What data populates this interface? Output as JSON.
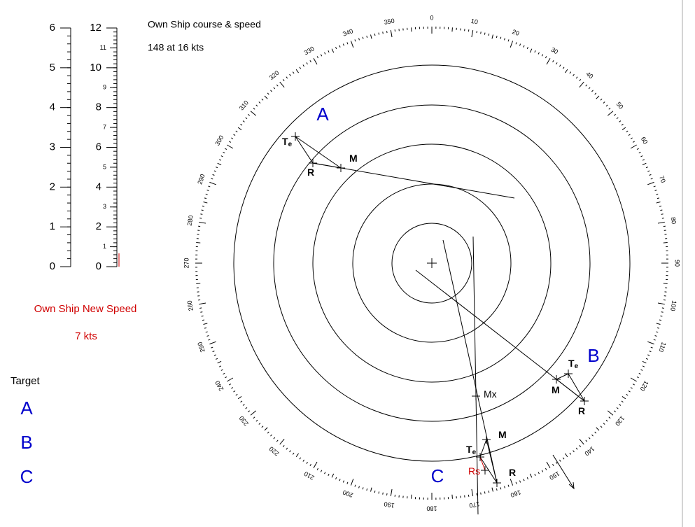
{
  "header": {
    "title": "Own Ship course & speed",
    "value": "148 at 16 kts"
  },
  "left_scale": {
    "lim": [
      0,
      6
    ],
    "ticks": [
      0,
      1,
      2,
      3,
      4,
      5,
      6
    ]
  },
  "right_scale": {
    "lim": [
      0,
      12
    ],
    "major_ticks": [
      0,
      2,
      4,
      6,
      8,
      10,
      12
    ],
    "minor_labeled_ticks": [
      1,
      3,
      5,
      7,
      9,
      11
    ]
  },
  "new_speed": {
    "title": "Own Ship New Speed",
    "value": "7 kts"
  },
  "target_list": {
    "title": "Target",
    "items": [
      "A",
      "B",
      "C"
    ]
  },
  "bearings": [
    0,
    10,
    20,
    30,
    40,
    50,
    60,
    70,
    80,
    90,
    100,
    110,
    120,
    130,
    140,
    150,
    160,
    170,
    180,
    190,
    200,
    210,
    220,
    230,
    240,
    250,
    260,
    270,
    280,
    290,
    300,
    310,
    320,
    330,
    340,
    350
  ],
  "targets": [
    {
      "name": "A",
      "points": [
        {
          "label": "T",
          "sub": "e"
        },
        {
          "label": "R"
        },
        {
          "label": "M"
        }
      ]
    },
    {
      "name": "B",
      "points": [
        {
          "label": "T",
          "sub": "e"
        },
        {
          "label": "M"
        },
        {
          "label": "R"
        }
      ]
    },
    {
      "name": "C",
      "points": [
        {
          "label": "T",
          "sub": "e"
        },
        {
          "label": "M"
        },
        {
          "label": "R"
        },
        {
          "label": "Rs"
        },
        {
          "label": "Mx"
        }
      ]
    }
  ]
}
